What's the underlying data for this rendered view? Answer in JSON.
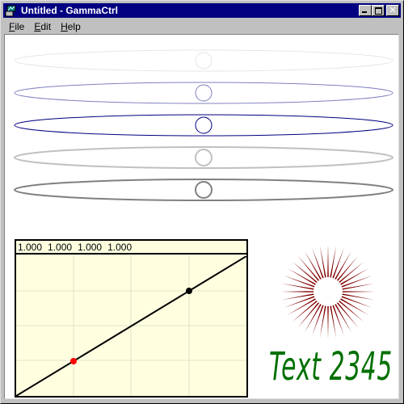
{
  "window": {
    "title": "Untitled - GammaCtrl",
    "app_icon": "gamma-app-icon",
    "title_bar_color": "#000080"
  },
  "caption_buttons": {
    "minimize": "minimize-icon",
    "maximize": "maximize-icon",
    "close_glyph": "✕"
  },
  "menu": {
    "items": [
      {
        "label": "File",
        "accelerator": "F",
        "rest": "ile"
      },
      {
        "label": "Edit",
        "accelerator": "E",
        "rest": "dit"
      },
      {
        "label": "Help",
        "accelerator": "H",
        "rest": "elp"
      }
    ]
  },
  "ellipses": [
    {
      "stroke": "#e6e6e6"
    },
    {
      "stroke": "#8080c0"
    },
    {
      "stroke": "#000080"
    },
    {
      "stroke": "#c0c0c0"
    },
    {
      "stroke": "#808080"
    },
    {
      "stroke": "#000000"
    }
  ],
  "gamma_panel": {
    "values": [
      "1.000",
      "1.000",
      "1.000",
      "1.000"
    ],
    "background": "#ffffe0",
    "control_points": [
      {
        "name": "low-point",
        "color": "#ff0000"
      },
      {
        "name": "high-point",
        "color": "#000000"
      }
    ]
  },
  "starburst": {
    "color": "#800000"
  },
  "sample_text": {
    "text": "Text 2345",
    "color": "#007000"
  }
}
